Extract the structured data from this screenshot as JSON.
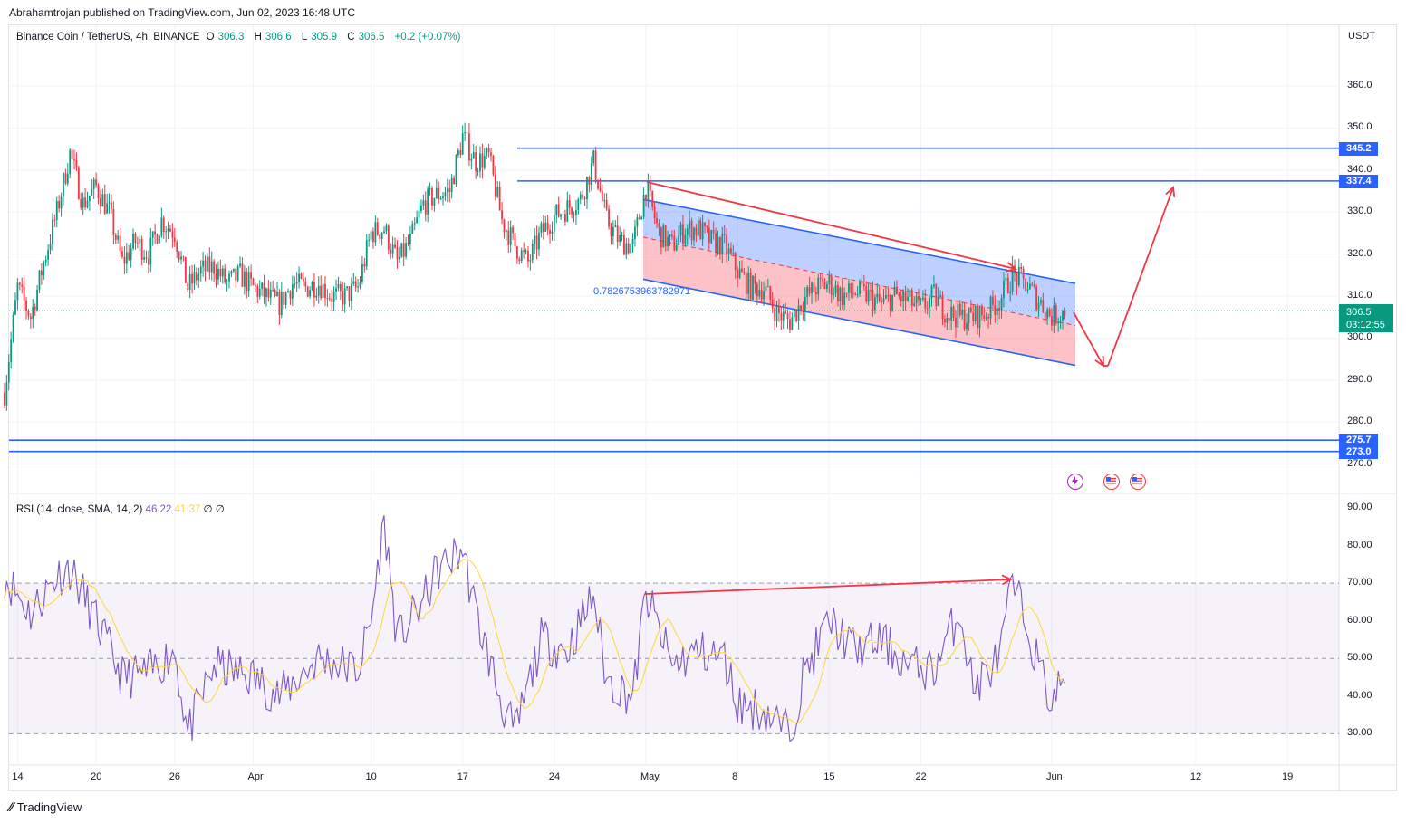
{
  "header": {
    "publish_line": "Abrahamtrojan published on TradingView.com, Jun 02, 2023 16:48 UTC"
  },
  "legend": {
    "symbol": "Binance Coin / TetherUS, 4h, BINANCE",
    "open_label": "O",
    "open": "306.3",
    "high_label": "H",
    "high": "306.6",
    "low_label": "L",
    "low": "305.9",
    "close_label": "C",
    "close": "306.5",
    "change": "+0.2 (+0.07%)"
  },
  "rsi_legend": {
    "label": "RSI (14, close, SMA, 14, 2)",
    "rsi_value": "46.22",
    "sma_value": "41.37",
    "extra1": "∅",
    "extra2": "∅"
  },
  "currency": "USDT",
  "price_axis": [
    "360.0",
    "350.0",
    "340.0",
    "330.0",
    "320.0",
    "310.0",
    "300.0",
    "290.0",
    "280.0",
    "270.0"
  ],
  "rsi_axis": [
    "90.00",
    "80.00",
    "70.00",
    "60.00",
    "50.00",
    "40.00",
    "30.00"
  ],
  "time_axis": [
    "14",
    "20",
    "26",
    "Apr",
    "10",
    "17",
    "24",
    "May",
    "8",
    "15",
    "22",
    "Jun",
    "12",
    "19"
  ],
  "price_tags": [
    "345.2",
    "337.4",
    "275.7",
    "273.0"
  ],
  "last_price": "306.5",
  "countdown": "03:12:55",
  "channel_label": "0.7826753963782971",
  "footer": {
    "brand": "TradingView"
  },
  "colors": {
    "up": "#089981",
    "down": "#f23645",
    "level_line": "#2962ff",
    "arrow": "#f23645",
    "rsi": "#7e57c2",
    "rsi_sma": "#fdd835",
    "channel_upper_fill": "#2962ff",
    "channel_lower_fill": "#f23645"
  },
  "chart_data": [
    {
      "type": "candlestick",
      "symbol": "BNBUSDT",
      "timeframe": "4h",
      "ylim": [
        265,
        372
      ],
      "horizontal_levels": [
        345.2,
        337.4,
        275.7,
        273.0
      ],
      "last_price": 306.5,
      "price_path_approx": [
        {
          "date": "Mar 13",
          "price": 287
        },
        {
          "date": "Mar 14",
          "price": 312
        },
        {
          "date": "Mar 15",
          "price": 305
        },
        {
          "date": "Mar 16",
          "price": 318
        },
        {
          "date": "Mar 17",
          "price": 330
        },
        {
          "date": "Mar 18",
          "price": 344
        },
        {
          "date": "Mar 19",
          "price": 332
        },
        {
          "date": "Mar 20",
          "price": 336
        },
        {
          "date": "Mar 21",
          "price": 330
        },
        {
          "date": "Mar 22",
          "price": 318
        },
        {
          "date": "Mar 23",
          "price": 323
        },
        {
          "date": "Mar 24",
          "price": 320
        },
        {
          "date": "Mar 25",
          "price": 328
        },
        {
          "date": "Mar 26",
          "price": 325
        },
        {
          "date": "Mar 27",
          "price": 312
        },
        {
          "date": "Mar 28",
          "price": 316
        },
        {
          "date": "Mar 29",
          "price": 317
        },
        {
          "date": "Mar 30",
          "price": 313
        },
        {
          "date": "Mar 31",
          "price": 315
        },
        {
          "date": "Apr 1",
          "price": 312
        },
        {
          "date": "Apr 2",
          "price": 310
        },
        {
          "date": "Apr 3",
          "price": 308
        },
        {
          "date": "Apr 4",
          "price": 313
        },
        {
          "date": "Apr 5",
          "price": 312
        },
        {
          "date": "Apr 6",
          "price": 313
        },
        {
          "date": "Apr 7",
          "price": 310
        },
        {
          "date": "Apr 8",
          "price": 310
        },
        {
          "date": "Apr 9",
          "price": 312
        },
        {
          "date": "Apr 10",
          "price": 325
        },
        {
          "date": "Apr 11",
          "price": 326
        },
        {
          "date": "Apr 12",
          "price": 318
        },
        {
          "date": "Apr 13",
          "price": 323
        },
        {
          "date": "Apr 14",
          "price": 332
        },
        {
          "date": "Apr 15",
          "price": 334
        },
        {
          "date": "Apr 16",
          "price": 335
        },
        {
          "date": "Apr 17",
          "price": 348
        },
        {
          "date": "Apr 18",
          "price": 342
        },
        {
          "date": "Apr 19",
          "price": 343
        },
        {
          "date": "Apr 20",
          "price": 328
        },
        {
          "date": "Apr 21",
          "price": 322
        },
        {
          "date": "Apr 22",
          "price": 318
        },
        {
          "date": "Apr 23",
          "price": 325
        },
        {
          "date": "Apr 24",
          "price": 329
        },
        {
          "date": "Apr 25",
          "price": 331
        },
        {
          "date": "Apr 26",
          "price": 333
        },
        {
          "date": "Apr 27",
          "price": 342
        },
        {
          "date": "Apr 28",
          "price": 328
        },
        {
          "date": "Apr 29",
          "price": 323
        },
        {
          "date": "Apr 30",
          "price": 322
        },
        {
          "date": "May 1",
          "price": 336
        },
        {
          "date": "May 2",
          "price": 325
        },
        {
          "date": "May 3",
          "price": 322
        },
        {
          "date": "May 4",
          "price": 326
        },
        {
          "date": "May 5",
          "price": 326
        },
        {
          "date": "May 6",
          "price": 323
        },
        {
          "date": "May 7",
          "price": 322
        },
        {
          "date": "May 8",
          "price": 316
        },
        {
          "date": "May 9",
          "price": 312
        },
        {
          "date": "May 10",
          "price": 312
        },
        {
          "date": "May 11",
          "price": 306
        },
        {
          "date": "May 12",
          "price": 304
        },
        {
          "date": "May 13",
          "price": 309
        },
        {
          "date": "May 14",
          "price": 312
        },
        {
          "date": "May 15",
          "price": 313
        },
        {
          "date": "May 16",
          "price": 310
        },
        {
          "date": "May 17",
          "price": 311
        },
        {
          "date": "May 18",
          "price": 310
        },
        {
          "date": "May 19",
          "price": 308
        },
        {
          "date": "May 20",
          "price": 310
        },
        {
          "date": "May 21",
          "price": 309
        },
        {
          "date": "May 22",
          "price": 307
        },
        {
          "date": "May 23",
          "price": 310
        },
        {
          "date": "May 24",
          "price": 306
        },
        {
          "date": "May 25",
          "price": 305
        },
        {
          "date": "May 26",
          "price": 305
        },
        {
          "date": "May 27",
          "price": 306
        },
        {
          "date": "May 28",
          "price": 309
        },
        {
          "date": "May 29",
          "price": 315
        },
        {
          "date": "May 30",
          "price": 313
        },
        {
          "date": "May 31",
          "price": 309
        },
        {
          "date": "Jun 1",
          "price": 305
        },
        {
          "date": "Jun 2",
          "price": 306.5
        }
      ]
    },
    {
      "type": "line",
      "name": "RSI (14, close, SMA, 14, 2)",
      "ylim": [
        27,
        93
      ],
      "bands": [
        70,
        50,
        30
      ],
      "rsi_last": 46.22,
      "sma_last": 41.37,
      "rsi_path_approx": [
        {
          "date": "Mar 13",
          "rsi": 72
        },
        {
          "date": "Mar 15",
          "rsi": 62
        },
        {
          "date": "Mar 17",
          "rsi": 72
        },
        {
          "date": "Mar 18",
          "rsi": 74
        },
        {
          "date": "Mar 20",
          "rsi": 60
        },
        {
          "date": "Mar 22",
          "rsi": 45
        },
        {
          "date": "Mar 24",
          "rsi": 46
        },
        {
          "date": "Mar 26",
          "rsi": 52
        },
        {
          "date": "Mar 27",
          "rsi": 30
        },
        {
          "date": "Mar 29",
          "rsi": 48
        },
        {
          "date": "Apr 1",
          "rsi": 45
        },
        {
          "date": "Apr 3",
          "rsi": 40
        },
        {
          "date": "Apr 6",
          "rsi": 50
        },
        {
          "date": "Apr 9",
          "rsi": 47
        },
        {
          "date": "Apr 10",
          "rsi": 60
        },
        {
          "date": "Apr 11",
          "rsi": 87
        },
        {
          "date": "Apr 12",
          "rsi": 55
        },
        {
          "date": "Apr 14",
          "rsi": 65
        },
        {
          "date": "Apr 15",
          "rsi": 73
        },
        {
          "date": "Apr 17",
          "rsi": 79
        },
        {
          "date": "Apr 18",
          "rsi": 62
        },
        {
          "date": "Apr 20",
          "rsi": 38
        },
        {
          "date": "Apr 21",
          "rsi": 30
        },
        {
          "date": "Apr 23",
          "rsi": 55
        },
        {
          "date": "Apr 25",
          "rsi": 52
        },
        {
          "date": "Apr 27",
          "rsi": 67
        },
        {
          "date": "Apr 28",
          "rsi": 44
        },
        {
          "date": "Apr 30",
          "rsi": 40
        },
        {
          "date": "May 1",
          "rsi": 67
        },
        {
          "date": "May 3",
          "rsi": 48
        },
        {
          "date": "May 5",
          "rsi": 52
        },
        {
          "date": "May 7",
          "rsi": 50
        },
        {
          "date": "May 8",
          "rsi": 38
        },
        {
          "date": "May 10",
          "rsi": 36
        },
        {
          "date": "May 11",
          "rsi": 33
        },
        {
          "date": "May 12",
          "rsi": 30
        },
        {
          "date": "May 13",
          "rsi": 45
        },
        {
          "date": "May 15",
          "rsi": 60
        },
        {
          "date": "May 17",
          "rsi": 52
        },
        {
          "date": "May 19",
          "rsi": 55
        },
        {
          "date": "May 21",
          "rsi": 48
        },
        {
          "date": "May 23",
          "rsi": 47
        },
        {
          "date": "May 25",
          "rsi": 63
        },
        {
          "date": "May 26",
          "rsi": 42
        },
        {
          "date": "May 28",
          "rsi": 50
        },
        {
          "date": "May 29",
          "rsi": 70
        },
        {
          "date": "May 30",
          "rsi": 60
        },
        {
          "date": "May 31",
          "rsi": 48
        },
        {
          "date": "Jun 1",
          "rsi": 38
        },
        {
          "date": "Jun 2",
          "rsi": 46.22
        }
      ]
    }
  ]
}
